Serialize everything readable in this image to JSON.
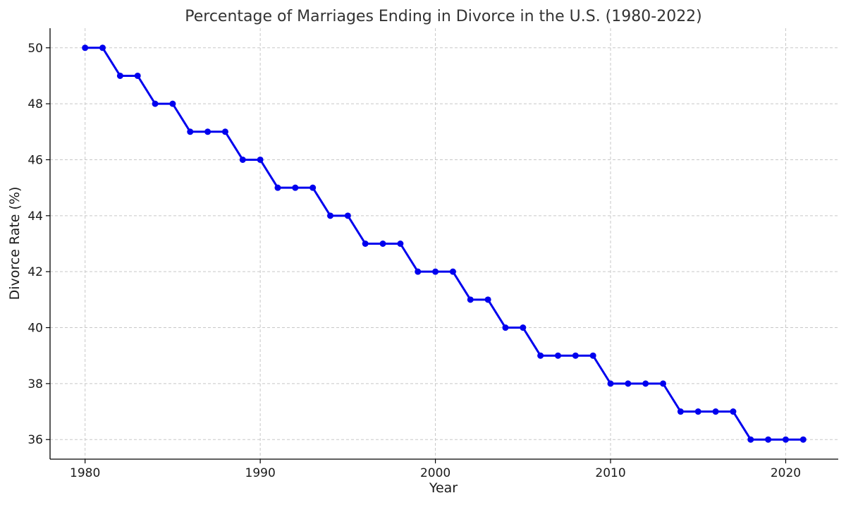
{
  "chart_data": {
    "type": "line",
    "title": "Percentage of Marriages Ending in Divorce in the U.S. (1980-2022)",
    "xlabel": "Year",
    "ylabel": "Divorce Rate (%)",
    "xlim": [
      1978,
      2023
    ],
    "ylim": [
      35.3,
      50.7
    ],
    "xticks": [
      1980,
      1990,
      2000,
      2010,
      2020
    ],
    "yticks": [
      36,
      38,
      40,
      42,
      44,
      46,
      48,
      50
    ],
    "grid": true,
    "series": [
      {
        "color": "#0000ee",
        "marker": "circle",
        "x": [
          1980,
          1981,
          1982,
          1983,
          1984,
          1985,
          1986,
          1987,
          1988,
          1989,
          1990,
          1991,
          1992,
          1993,
          1994,
          1995,
          1996,
          1997,
          1998,
          1999,
          2000,
          2001,
          2002,
          2003,
          2004,
          2005,
          2006,
          2007,
          2008,
          2009,
          2010,
          2011,
          2012,
          2013,
          2014,
          2015,
          2016,
          2017,
          2018,
          2019,
          2020,
          2021
        ],
        "y": [
          50,
          50,
          49,
          49,
          48,
          48,
          47,
          47,
          47,
          46,
          46,
          45,
          45,
          45,
          44,
          44,
          43,
          43,
          43,
          42,
          42,
          42,
          41,
          41,
          40,
          40,
          39,
          39,
          39,
          39,
          38,
          38,
          38,
          38,
          37,
          37,
          37,
          37,
          36,
          36,
          36,
          36
        ]
      }
    ]
  }
}
